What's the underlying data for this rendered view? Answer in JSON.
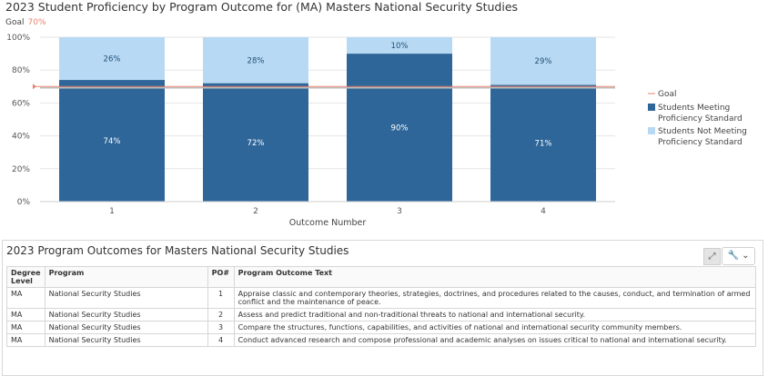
{
  "chart_data": {
    "type": "bar",
    "stacked": true,
    "title": "2023 Student Proficiency by Program Outcome for (MA) Masters National Security Studies",
    "goal_label": "Goal",
    "goal_value_label": "70%",
    "goal": 70,
    "categories": [
      "1",
      "2",
      "3",
      "4"
    ],
    "series": [
      {
        "name": "Students Meeting Proficiency Standard",
        "values": [
          74,
          72,
          90,
          71
        ],
        "labels": [
          "74%",
          "72%",
          "90%",
          "71%"
        ],
        "color": "#2e6699"
      },
      {
        "name": "Students Not Meeting Proficiency Standard",
        "values": [
          26,
          28,
          10,
          29
        ],
        "labels": [
          "26%",
          "28%",
          "10%",
          "29%"
        ],
        "color": "#b8d9f3"
      }
    ],
    "xlabel": "Outcome Number",
    "ylabel": "",
    "ylim": [
      0,
      100
    ],
    "yticks": [
      "0%",
      "20%",
      "40%",
      "60%",
      "80%",
      "100%"
    ],
    "legend_position": "right",
    "legend_items": [
      "Goal",
      "Students Meeting Proficiency Standard",
      "Students Not Meeting Proficiency Standard"
    ]
  },
  "colors": {
    "goal_line": "#e8826e",
    "meet": "#2e6699",
    "notmeet": "#b8d9f3"
  },
  "table_panel": {
    "title": "2023 Program Outcomes for Masters National Security Studies",
    "expand_icon": "expand-icon",
    "tools_icon": "wrench-icon",
    "headers": [
      "Degree Level",
      "Program",
      "PO#",
      "Program Outcome Text"
    ],
    "rows": [
      {
        "level": "MA",
        "program": "National Security Studies",
        "po": "1",
        "text": "Appraise classic and contemporary theories, strategies, doctrines, and procedures related to the causes, conduct, and termination of armed conflict and the maintenance of peace."
      },
      {
        "level": "MA",
        "program": "National Security Studies",
        "po": "2",
        "text": "Assess and predict traditional and non-traditional threats to national and international security."
      },
      {
        "level": "MA",
        "program": "National Security Studies",
        "po": "3",
        "text": "Compare the structures, functions, capabilities, and activities of national and international security community members."
      },
      {
        "level": "MA",
        "program": "National Security Studies",
        "po": "4",
        "text": "Conduct advanced research and compose professional and academic analyses on issues critical to national and international security."
      }
    ]
  }
}
